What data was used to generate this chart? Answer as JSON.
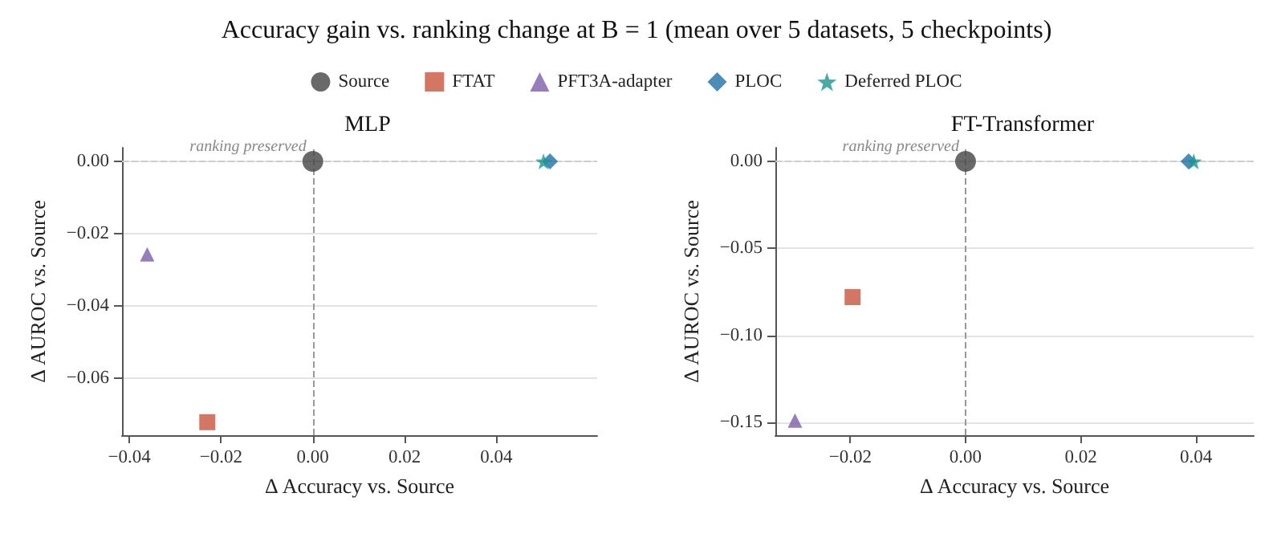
{
  "chart_data": [
    {
      "type": "scatter",
      "title": "Accuracy gain vs. ranking change at B = 1 (mean over 5 datasets, 5 checkpoints)",
      "subtitle": "MLP",
      "xlabel": "Δ Accuracy vs. Source",
      "ylabel": "Δ AUROC vs. Source",
      "legend": "top",
      "grid": "y",
      "xlim": [
        -0.0416,
        0.062
      ],
      "ylim": [
        -0.0758,
        0.0038
      ],
      "xticks": [
        {
          "value": -0.04,
          "label": "−0.04"
        },
        {
          "value": -0.02,
          "label": "−0.02"
        },
        {
          "value": 0,
          "label": "0.00"
        },
        {
          "value": 0.02,
          "label": "0.02"
        },
        {
          "value": 0.04,
          "label": "0.04"
        }
      ],
      "yticks": [
        {
          "value": -0.06,
          "label": "−0.06"
        },
        {
          "value": -0.04,
          "label": "−0.04"
        },
        {
          "value": -0.02,
          "label": "−0.02"
        },
        {
          "value": 0,
          "label": "0.00"
        }
      ],
      "ref_lines": [
        {
          "axis": "y",
          "value": 0,
          "line_style": "dashed",
          "color": "#cccccc"
        },
        {
          "axis": "x",
          "value": 0,
          "line_style": "dashed",
          "color": "#999999"
        }
      ],
      "annotations": [
        {
          "text": "ranking preserved",
          "x": 0,
          "y": 0
        }
      ],
      "series": [
        {
          "name": "Source",
          "color": "#444444",
          "marker": "circle",
          "x": [
            0
          ],
          "values": [
            0
          ]
        },
        {
          "name": "FTAT",
          "color": "#c8553d",
          "marker": "square",
          "x": [
            -0.023
          ],
          "values": [
            -0.0722
          ]
        },
        {
          "name": "PFT3A-adapter",
          "color": "#7b5ea7",
          "marker": "triangle",
          "x": [
            -0.0361
          ],
          "values": [
            -0.0257
          ]
        },
        {
          "name": "PLOC",
          "color": "#1f6fa8",
          "marker": "diamond",
          "x": [
            0.0517
          ],
          "values": [
            0
          ]
        },
        {
          "name": "Deferred PLOC",
          "color": "#1a9690",
          "marker": "star",
          "x": [
            0.0503
          ],
          "values": [
            0
          ]
        }
      ]
    },
    {
      "type": "scatter",
      "subtitle": "FT-Transformer",
      "xlabel": "Δ Accuracy vs. Source",
      "ylabel": "Δ AUROC vs. Source",
      "grid": "y",
      "xlim": [
        -0.033,
        0.05
      ],
      "ylim": [
        -0.1574,
        0.0079
      ],
      "xticks": [
        {
          "value": -0.02,
          "label": "−0.02"
        },
        {
          "value": 0,
          "label": "0.00"
        },
        {
          "value": 0.02,
          "label": "0.02"
        },
        {
          "value": 0.04,
          "label": "0.04"
        }
      ],
      "yticks": [
        {
          "value": -0.15,
          "label": "−0.15"
        },
        {
          "value": -0.1,
          "label": "−0.10"
        },
        {
          "value": -0.05,
          "label": "−0.05"
        },
        {
          "value": 0,
          "label": "0.00"
        }
      ],
      "ref_lines": [
        {
          "axis": "y",
          "value": 0,
          "line_style": "dashed",
          "color": "#cccccc"
        },
        {
          "axis": "x",
          "value": 0,
          "line_style": "dashed",
          "color": "#999999"
        }
      ],
      "annotations": [
        {
          "text": "ranking preserved",
          "x": 0,
          "y": 0
        }
      ],
      "series": [
        {
          "color": "#444444",
          "marker": "circle",
          "x": [
            0
          ],
          "values": [
            0
          ]
        },
        {
          "color": "#c8553d",
          "marker": "square",
          "x": [
            -0.0196
          ],
          "values": [
            -0.078
          ]
        },
        {
          "color": "#7b5ea7",
          "marker": "triangle",
          "x": [
            -0.0296
          ],
          "values": [
            -0.149
          ]
        },
        {
          "color": "#1f6fa8",
          "marker": "diamond",
          "x": [
            0.0387
          ],
          "values": [
            0
          ]
        },
        {
          "color": "#1a9690",
          "marker": "star",
          "x": [
            0.0396
          ],
          "values": [
            0
          ]
        }
      ]
    }
  ]
}
